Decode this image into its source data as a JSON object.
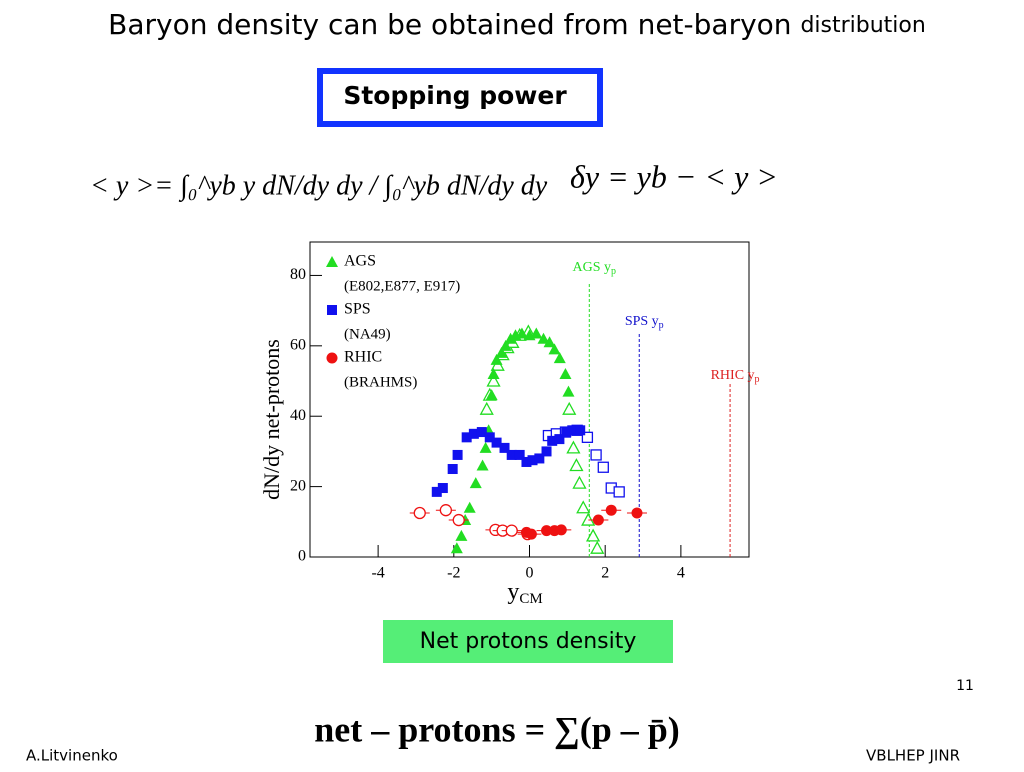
{
  "slide": {
    "title": "Baryon density can be obtained from net-baryon",
    "title_tail": "distribution",
    "badge": "Stopping power",
    "formula_mean": "< y >= ∫₀^yb y dN/dy dy / ∫₀^yb dN/dy dy",
    "formula_delta": "δy = yb − < y >",
    "caption": "Net protons density",
    "page_number": "11",
    "net_formula": "net – protons = ∑(p – p̄)",
    "author": "A.Litvinenko",
    "institute": "VBLHEP JINR"
  },
  "chart_data": {
    "type": "scatter",
    "y_label": "dN/dy net-protons",
    "x_label": "y",
    "x_label_sub": "CM",
    "xlim": [
      -5.8,
      5.8
    ],
    "ylim": [
      0,
      89.5
    ],
    "xticks": [
      -4,
      -2,
      0,
      2,
      4
    ],
    "yticks": [
      0,
      20,
      40,
      60,
      80
    ],
    "series": [
      {
        "name": "AGS",
        "note": "(E802,E877, E917)",
        "color": "#22dd22",
        "marker": "triangle",
        "x": [
          -1.92,
          -1.8,
          -1.7,
          -1.58,
          -1.42,
          -1.24,
          -1.16,
          -1.08,
          -1.0,
          -0.95,
          -0.87,
          -0.74,
          -0.63,
          -0.5,
          -0.37,
          -0.2,
          0,
          0.18,
          0.37,
          0.53,
          0.66,
          0.8,
          0.95,
          1.03
        ],
        "values": [
          2.5,
          6,
          10.5,
          14,
          21,
          26,
          31,
          36,
          46,
          52,
          56,
          58,
          60,
          62,
          63,
          63.5,
          63,
          63.5,
          62,
          61,
          59,
          56.5,
          52,
          47
        ],
        "x_reflected": [
          -1.13,
          -1.05,
          -0.95,
          -0.84,
          -0.71,
          -0.58,
          -0.45,
          -0.26,
          -0.03,
          1.05,
          1.16,
          1.24,
          1.32,
          1.42,
          1.55,
          1.68,
          1.79
        ],
        "values_reflected": [
          42,
          46,
          50,
          54.5,
          57.5,
          59.5,
          61,
          63,
          64,
          42,
          31,
          26,
          21,
          14,
          10.5,
          6,
          2.5
        ]
      },
      {
        "name": "SPS",
        "note": "(NA49)",
        "color": "#1111ee",
        "marker": "square",
        "x": [
          -2.45,
          -2.29,
          -2.03,
          -1.9,
          -1.66,
          -1.47,
          -1.26,
          -1.05,
          -0.87,
          -0.66,
          -0.47,
          -0.26,
          -0.08,
          0.08,
          0.26,
          0.45,
          0.6,
          0.79,
          0.97,
          1.13,
          1.34
        ],
        "values": [
          18.5,
          19.6,
          25,
          29,
          34,
          35,
          35.5,
          34,
          32.5,
          31,
          29,
          29,
          27,
          27.5,
          28,
          30,
          33,
          33.5,
          35.5,
          36,
          36
        ],
        "x_reflected": [
          0.5,
          0.71,
          0.95,
          1.26,
          1.53,
          1.76,
          1.95,
          2.16,
          2.37
        ],
        "values_reflected": [
          34.5,
          35,
          35.5,
          36,
          34,
          29,
          25.5,
          19.6,
          18.5
        ]
      },
      {
        "name": "RHIC",
        "note": "(BRAHMS)",
        "color": "#ee1111",
        "marker": "circle",
        "x": [
          -0.08,
          0.05,
          0.45,
          0.66,
          0.84,
          1.82,
          2.16,
          2.84
        ],
        "values": [
          7,
          6.5,
          7.5,
          7.5,
          7.7,
          10.5,
          13.3,
          12.5
        ],
        "x_reflected": [
          -2.9,
          -2.21,
          -1.87,
          -0.9,
          -0.71,
          -0.47,
          -0.05
        ],
        "values_reflected": [
          12.5,
          13.3,
          10.5,
          7.7,
          7.5,
          7.5,
          6.5
        ]
      }
    ],
    "annotations": [
      {
        "label": "AGS y",
        "sub": "p",
        "x": 1.58,
        "color": "#22dd22"
      },
      {
        "label": "SPS y",
        "sub": "p",
        "x": 2.9,
        "color": "#1111cc"
      },
      {
        "label": "RHIC y",
        "sub": "p",
        "x": 5.3,
        "color": "#dd2222"
      }
    ]
  }
}
